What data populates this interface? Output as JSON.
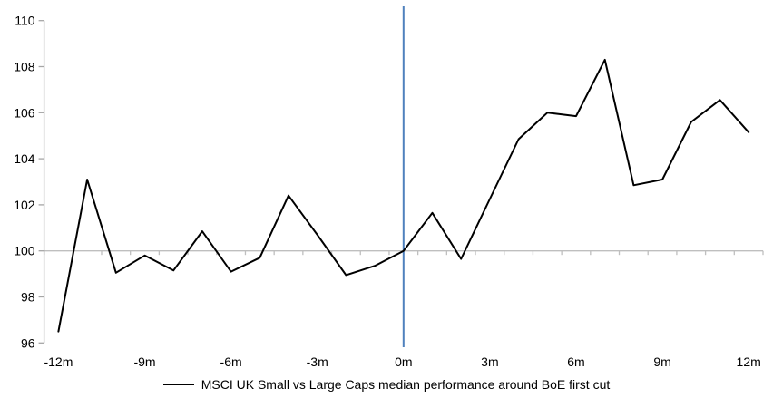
{
  "chart_data": {
    "type": "line",
    "title": "",
    "legend": "MSCI UK Small vs Large Caps median performance around BoE first cut",
    "xlabel": "",
    "ylabel": "",
    "x_months": [
      -12,
      -11,
      -10,
      -9,
      -8,
      -7,
      -6,
      -5,
      -4,
      -3,
      -2,
      -1,
      0,
      1,
      2,
      3,
      4,
      5,
      6,
      7,
      8,
      9,
      10,
      11,
      12
    ],
    "values": [
      96.5,
      103.1,
      99.05,
      99.8,
      99.15,
      100.85,
      99.1,
      99.7,
      102.4,
      100.7,
      98.95,
      99.35,
      100.0,
      101.65,
      99.65,
      102.25,
      104.85,
      106.0,
      105.85,
      108.3,
      102.85,
      103.1,
      105.6,
      106.55,
      105.15
    ],
    "x_tick_months": [
      -12,
      -9,
      -6,
      -3,
      0,
      3,
      6,
      9,
      12
    ],
    "x_tick_labels": [
      "-12m",
      "-9m",
      "-6m",
      "-3m",
      "0m",
      "3m",
      "6m",
      "9m",
      "12m"
    ],
    "y_ticks": [
      96,
      98,
      100,
      102,
      104,
      106,
      108,
      110
    ],
    "y_tick_labels": [
      "96",
      "98",
      "100",
      "102",
      "104",
      "106",
      "108",
      "110"
    ],
    "ylim": [
      96,
      110
    ],
    "baseline_value": 100,
    "event_line_month": 0,
    "grid": "off",
    "legend_position": "bottom-center",
    "colors": {
      "series": "#000000",
      "event_line": "#4F81BD",
      "baseline": "#BFBFBF",
      "axis": "#A6A6A6",
      "text": "#000000",
      "background": "#FFFFFF"
    }
  }
}
